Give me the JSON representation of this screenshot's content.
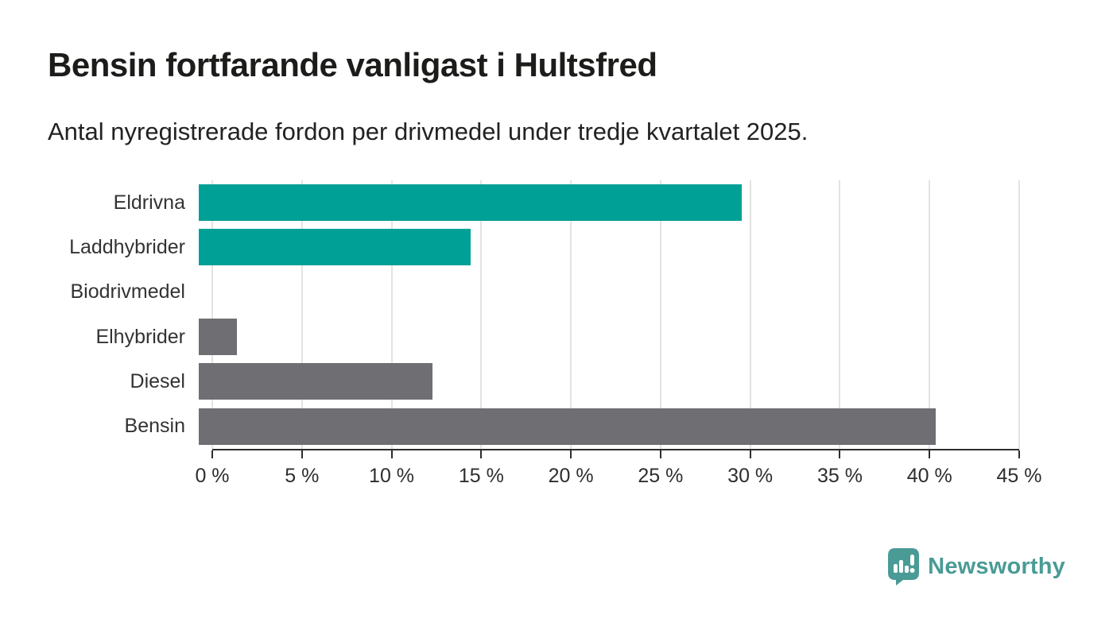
{
  "title": "Bensin fortfarande vanligast i Hultsfred",
  "subtitle": "Antal nyregistrerade fordon per drivmedel under tredje kvartalet 2025.",
  "chart_data": {
    "type": "bar",
    "orientation": "horizontal",
    "title": "Bensin fortfarande vanligast i Hultsfred",
    "subtitle": "Antal nyregistrerade fordon per drivmedel under tredje kvartalet 2025.",
    "categories": [
      "Eldrivna",
      "Laddhybrider",
      "Biodrivmedel",
      "Elhybrider",
      "Diesel",
      "Bensin"
    ],
    "values": [
      29.8,
      14.9,
      0,
      2.1,
      12.8,
      40.4
    ],
    "unit": "%",
    "xlim": [
      0,
      45
    ],
    "x_tick_values": [
      0,
      5,
      10,
      15,
      20,
      25,
      30,
      35,
      40,
      45
    ],
    "x_tick_labels": [
      "0 %",
      "5 %",
      "10 %",
      "15 %",
      "20 %",
      "25 %",
      "30 %",
      "35 %",
      "40 %",
      "45 %"
    ],
    "grid": true,
    "legend": "none",
    "bar_colors": [
      "#00a096",
      "#00a096",
      "#6e6e73",
      "#6e6e73",
      "#6e6e73",
      "#6e6e73"
    ],
    "colors": {
      "highlight_teal": "#00a096",
      "neutral_gray": "#6e6e73",
      "gridline": "#e3e3e3",
      "axis": "#2e2e2e",
      "label_text": "#333333",
      "title_text": "#1c1c1a"
    }
  },
  "branding": {
    "logo_text": "Newsworthy",
    "logo_color": "#4a9b95",
    "logo_icon": "bar-chart-speech-bubble-icon"
  }
}
